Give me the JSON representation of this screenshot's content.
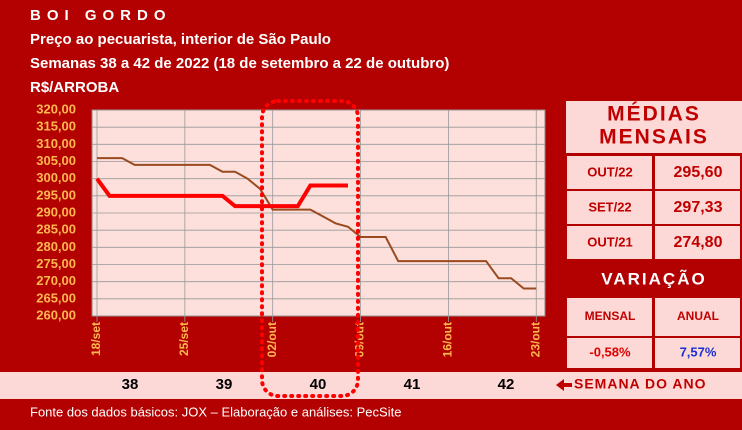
{
  "chart_data": {
    "type": "line",
    "title": "BOI GORDO",
    "subtitle": "Preço ao pecuarista, interior de São Paulo",
    "period": "Semanas 38 a 42 de 2022 (18 de setembro a 22 de outubro)",
    "y_label": "R$/ARROBA",
    "categories": [
      "18/set",
      null,
      null,
      null,
      null,
      null,
      null,
      "25/set",
      null,
      null,
      null,
      null,
      null,
      null,
      "02/out",
      null,
      null,
      null,
      null,
      null,
      null,
      "09/out",
      null,
      null,
      null,
      null,
      null,
      null,
      "16/out",
      null,
      null,
      null,
      null,
      null,
      null,
      "23/out"
    ],
    "series": [
      {
        "color": "#9a4a1e",
        "values": [
          306,
          306,
          306,
          304,
          304,
          304,
          304,
          304,
          304,
          304,
          302,
          302,
          300,
          297,
          291,
          291,
          291,
          291,
          289,
          287,
          286,
          283,
          283,
          283,
          276,
          276,
          276,
          276,
          276,
          276,
          276,
          276,
          271,
          271,
          268,
          268
        ]
      },
      {
        "color": "#ff0000",
        "values": [
          300,
          295,
          295,
          295,
          295,
          295,
          295,
          295,
          295,
          295,
          295,
          292,
          292,
          292,
          292,
          292,
          292,
          298,
          298,
          298,
          298,
          null,
          null,
          null,
          null,
          null,
          null,
          null,
          null,
          null,
          null,
          null,
          null,
          null,
          null,
          null
        ]
      }
    ],
    "ylim": [
      260,
      320
    ],
    "yticks": [
      {
        "value": 260,
        "label": "260,00"
      },
      {
        "value": 265,
        "label": "265,00"
      },
      {
        "value": 270,
        "label": "270,00"
      },
      {
        "value": 275,
        "label": "275,00"
      },
      {
        "value": 280,
        "label": "280,00"
      },
      {
        "value": 285,
        "label": "285,00"
      },
      {
        "value": 290,
        "label": "290,00"
      },
      {
        "value": 295,
        "label": "295,00"
      },
      {
        "value": 300,
        "label": "300,00"
      },
      {
        "value": 305,
        "label": "305,00"
      },
      {
        "value": 310,
        "label": "310,00"
      },
      {
        "value": 315,
        "label": "315,00"
      },
      {
        "value": 320,
        "label": "320,00"
      }
    ],
    "grid": true,
    "weeks": [
      "38",
      "39",
      "40",
      "41",
      "42"
    ],
    "weeks_label": "SEMANA DO ANO"
  },
  "monthly_averages": {
    "title": [
      "MÉDIAS",
      "MENSAIS"
    ],
    "rows": [
      [
        "OUT/22",
        "295,60"
      ],
      [
        "SET/22",
        "297,33"
      ],
      [
        "OUT/21",
        "274,80"
      ]
    ]
  },
  "variation": {
    "title": "VARIAÇÃO",
    "headers": [
      "MENSAL",
      "ANUAL"
    ],
    "values": [
      "-0,58%",
      "7,57%"
    ]
  },
  "footer": "Fonte dos dados básicos: JOX – Elaboração e análises: PecSite"
}
